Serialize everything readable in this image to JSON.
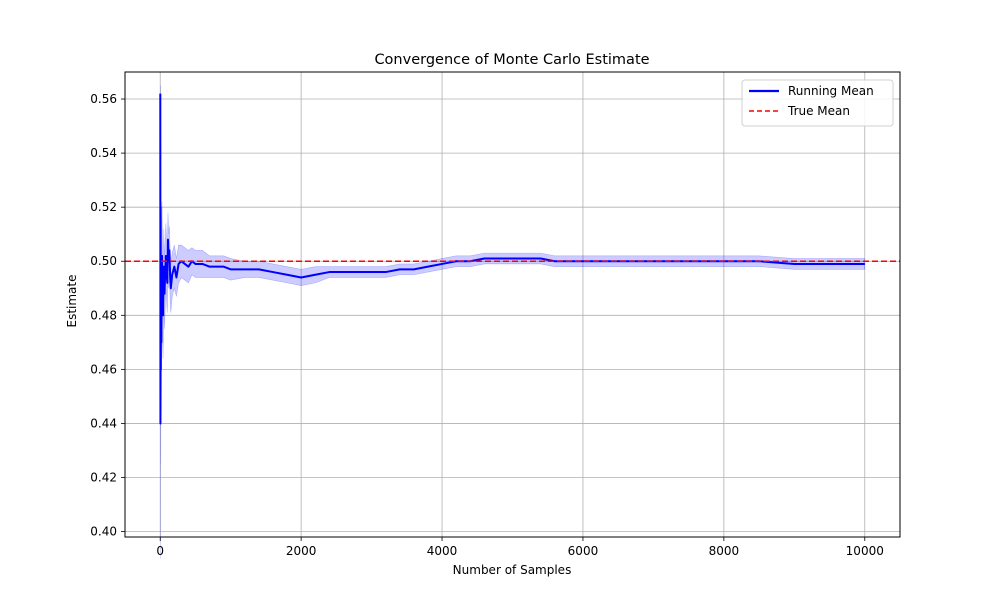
{
  "colors": {
    "running_mean": "#0000ff",
    "band": "#0000ff",
    "true_mean": "#ff0000",
    "grid": "#b0b0b0",
    "axis": "#000000"
  },
  "legend_labels": {
    "running_mean": "Running Mean",
    "true_mean": "True Mean"
  },
  "chart_data": {
    "type": "line",
    "title": "Convergence of Monte Carlo Estimate",
    "xlabel": "Number of Samples",
    "ylabel": "Estimate",
    "xlim": [
      -500,
      10500
    ],
    "ylim": [
      0.398,
      0.57
    ],
    "xticks": [
      0,
      2000,
      4000,
      6000,
      8000,
      10000
    ],
    "yticks": [
      0.4,
      0.42,
      0.44,
      0.46,
      0.48,
      0.5,
      0.52,
      0.54,
      0.56
    ],
    "grid": true,
    "legend_position": "top-right",
    "true_mean": 0.5,
    "series": [
      {
        "name": "Running Mean",
        "style": "solid",
        "x": [
          1,
          3,
          5,
          8,
          10,
          15,
          20,
          25,
          30,
          40,
          50,
          60,
          70,
          80,
          90,
          100,
          110,
          120,
          130,
          140,
          150,
          170,
          200,
          230,
          260,
          300,
          350,
          400,
          450,
          500,
          600,
          700,
          800,
          900,
          1000,
          1200,
          1400,
          1600,
          1800,
          2000,
          2200,
          2400,
          2600,
          2800,
          3000,
          3200,
          3400,
          3600,
          3800,
          4000,
          4200,
          4400,
          4600,
          4800,
          5000,
          5200,
          5400,
          5600,
          5800,
          6000,
          6500,
          7000,
          7500,
          8000,
          8500,
          9000,
          9500,
          10000
        ],
        "y": [
          0.562,
          0.44,
          0.52,
          0.46,
          0.5,
          0.47,
          0.485,
          0.502,
          0.492,
          0.48,
          0.498,
          0.488,
          0.495,
          0.502,
          0.497,
          0.492,
          0.508,
          0.5,
          0.504,
          0.495,
          0.49,
          0.495,
          0.498,
          0.494,
          0.499,
          0.5,
          0.499,
          0.498,
          0.5,
          0.499,
          0.499,
          0.498,
          0.498,
          0.498,
          0.497,
          0.497,
          0.497,
          0.496,
          0.495,
          0.494,
          0.495,
          0.496,
          0.496,
          0.496,
          0.496,
          0.496,
          0.497,
          0.497,
          0.498,
          0.499,
          0.5,
          0.5,
          0.501,
          0.501,
          0.501,
          0.501,
          0.501,
          0.5,
          0.5,
          0.5,
          0.5,
          0.5,
          0.5,
          0.5,
          0.5,
          0.499,
          0.499,
          0.499
        ]
      },
      {
        "name": "True Mean",
        "style": "dashed",
        "x": [
          -500,
          10500
        ],
        "y": [
          0.5,
          0.5
        ]
      }
    ],
    "band": {
      "x": [
        1,
        3,
        5,
        8,
        10,
        15,
        20,
        25,
        30,
        40,
        50,
        60,
        70,
        80,
        90,
        100,
        110,
        120,
        130,
        140,
        150,
        170,
        200,
        230,
        260,
        300,
        350,
        400,
        450,
        500,
        600,
        700,
        800,
        900,
        1000,
        1200,
        1400,
        1600,
        1800,
        2000,
        2200,
        2400,
        2600,
        2800,
        3000,
        3200,
        3400,
        3600,
        3800,
        4000,
        4200,
        4400,
        4600,
        4800,
        5000,
        5200,
        5400,
        5600,
        5800,
        6000,
        6500,
        7000,
        7500,
        8000,
        8500,
        9000,
        9500,
        10000
      ],
      "half_width": [
        0.0,
        0.05,
        0.045,
        0.035,
        0.03,
        0.025,
        0.022,
        0.02,
        0.018,
        0.016,
        0.014,
        0.013,
        0.012,
        0.012,
        0.011,
        0.011,
        0.01,
        0.01,
        0.009,
        0.009,
        0.009,
        0.008,
        0.008,
        0.007,
        0.007,
        0.006,
        0.006,
        0.006,
        0.005,
        0.005,
        0.005,
        0.004,
        0.004,
        0.004,
        0.004,
        0.003,
        0.003,
        0.003,
        0.003,
        0.003,
        0.003,
        0.002,
        0.002,
        0.002,
        0.002,
        0.002,
        0.002,
        0.002,
        0.002,
        0.002,
        0.002,
        0.002,
        0.002,
        0.002,
        0.002,
        0.002,
        0.002,
        0.002,
        0.002,
        0.002,
        0.002,
        0.002,
        0.002,
        0.002,
        0.002,
        0.002,
        0.002,
        0.002
      ]
    }
  }
}
